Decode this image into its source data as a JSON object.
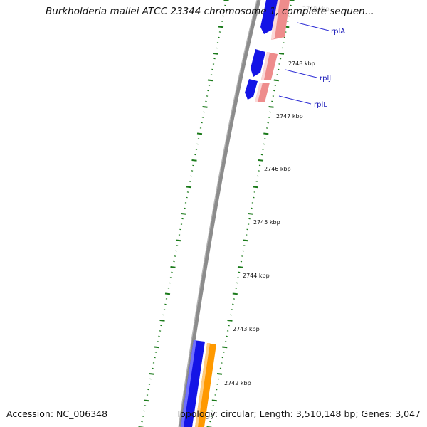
{
  "title": "Burkholderia mallei ATCC 23344 chromosome 1, complete sequen...",
  "footer": {
    "accession": "Accession: NC_006348",
    "topology": "Topology: circular; Length: 3,510,148 bp; Genes: 3,047"
  },
  "colors": {
    "backbone": "#8c8c8c",
    "ticks": "#1a7a1a",
    "forward_gene": "#1414e6",
    "reverse_gene": "#ee8c8c",
    "reverse_gene_alt": "#ff9900",
    "label_line": "#2a2ad4",
    "gene_label": "#1a1ab8"
  },
  "axis": {
    "unit": "kbp",
    "tick_labels": [
      "2748 kbp",
      "2747 kbp",
      "2746 kbp",
      "2745 kbp",
      "2744 kbp",
      "2743 kbp",
      "2742 kbp"
    ],
    "partial_top_label": "2749 kbp"
  },
  "genes": [
    {
      "name": "rplA",
      "label": "rplA"
    },
    {
      "name": "rplJ",
      "label": "rplJ"
    },
    {
      "name": "rplL",
      "label": "rplL"
    }
  ]
}
